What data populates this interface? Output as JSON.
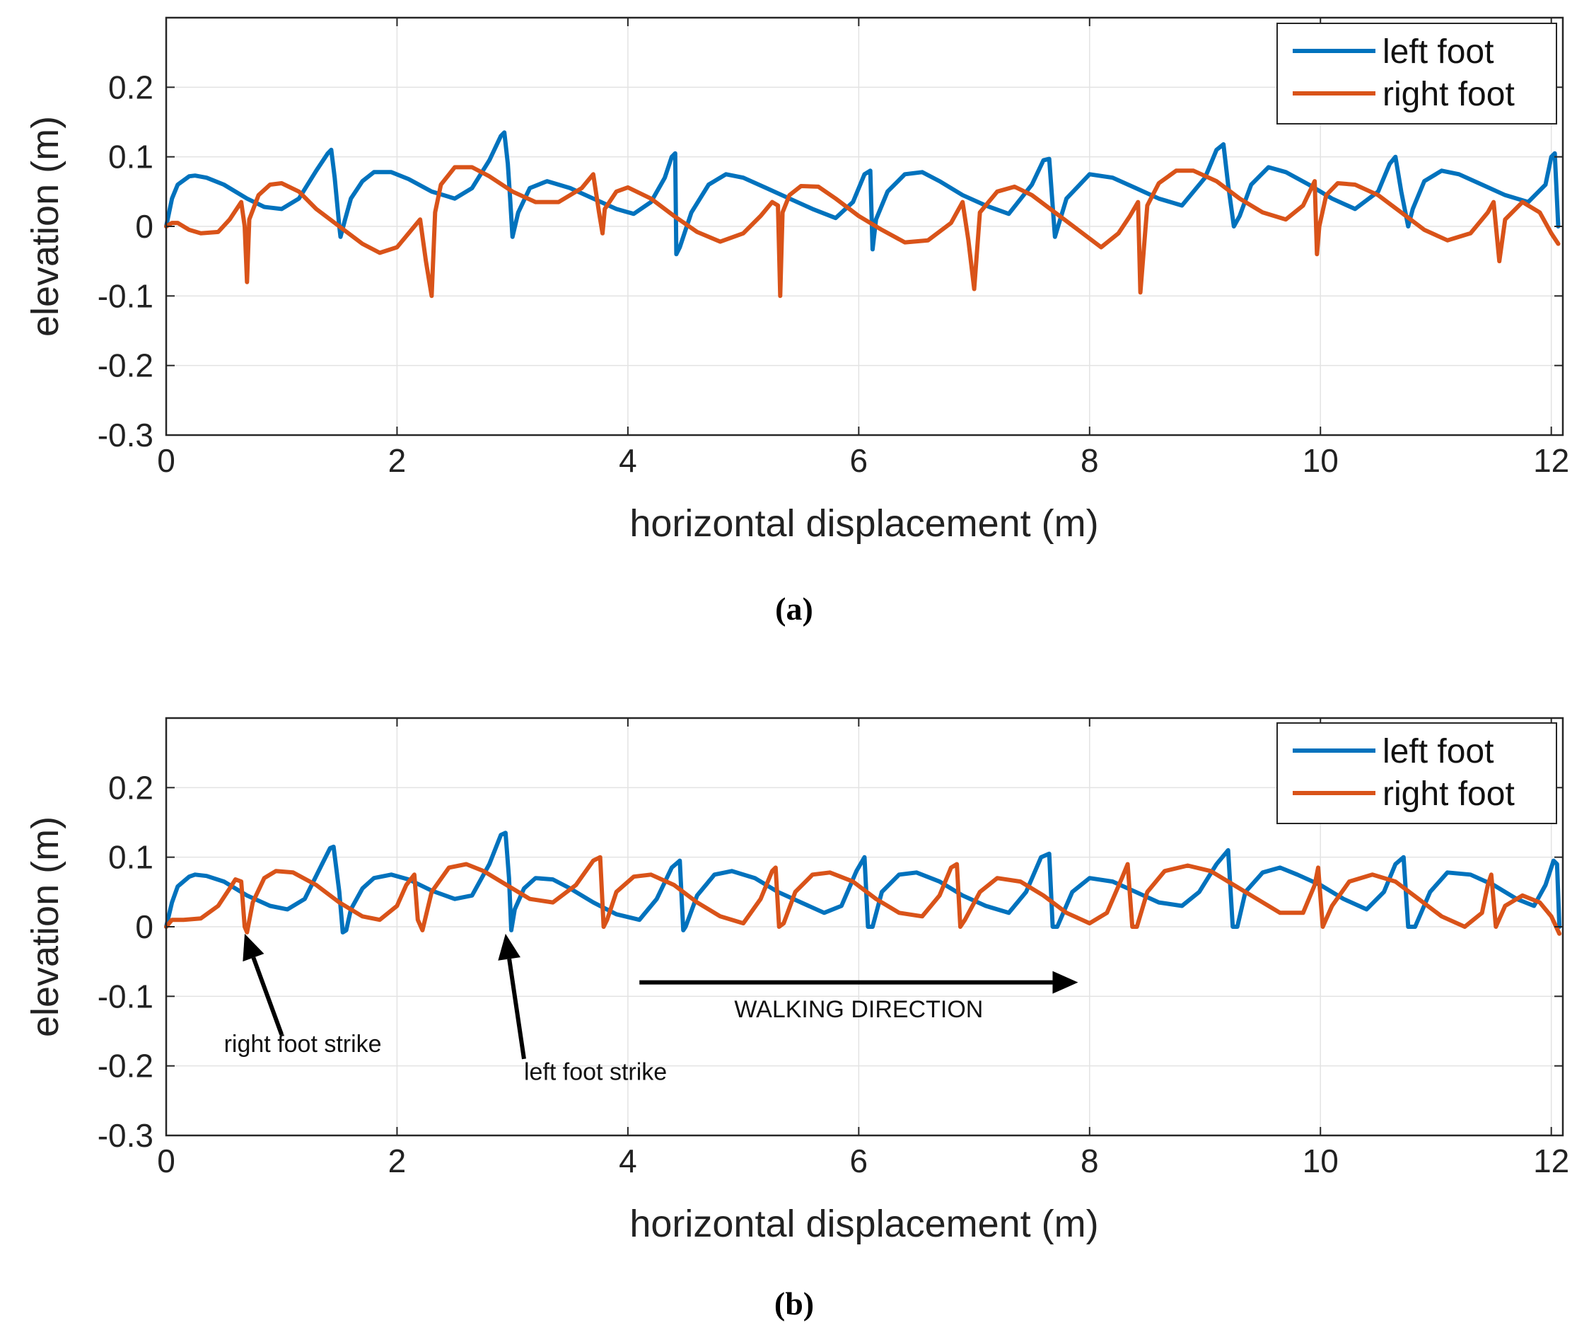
{
  "chart_data": [
    {
      "type": "line",
      "panel_label": "(a)",
      "title": "",
      "xlabel": "horizontal displacement (m)",
      "ylabel": "elevation (m)",
      "xlim": [
        0,
        12.1
      ],
      "ylim": [
        -0.3,
        0.3
      ],
      "xticks": [
        0,
        2,
        4,
        6,
        8,
        10,
        12
      ],
      "xtick_labels": [
        "0",
        "2",
        "4",
        "6",
        "8",
        "10",
        "12"
      ],
      "yticks": [
        -0.3,
        -0.2,
        -0.1,
        0,
        0.1,
        0.2
      ],
      "ytick_labels": [
        "-0.3",
        "-0.2",
        "-0.1",
        "0",
        "0.1",
        "0.2"
      ],
      "grid": true,
      "legend_position": "top-right",
      "series": [
        {
          "name": "left foot",
          "color": "#0072BD",
          "x": [
            0,
            0.05,
            0.1,
            0.2,
            0.25,
            0.35,
            0.5,
            0.7,
            0.85,
            1.0,
            1.15,
            1.3,
            1.4,
            1.43,
            1.46,
            1.5,
            1.51,
            1.55,
            1.6,
            1.7,
            1.8,
            1.95,
            2.1,
            2.3,
            2.5,
            2.65,
            2.8,
            2.9,
            2.93,
            2.96,
            2.98,
            3.0,
            3.05,
            3.15,
            3.3,
            3.5,
            3.7,
            3.9,
            4.05,
            4.2,
            4.32,
            4.38,
            4.41,
            4.42,
            4.45,
            4.55,
            4.7,
            4.85,
            5.0,
            5.2,
            5.4,
            5.6,
            5.8,
            5.95,
            6.05,
            6.1,
            6.12,
            6.15,
            6.25,
            6.4,
            6.55,
            6.7,
            6.9,
            7.1,
            7.3,
            7.5,
            7.6,
            7.65,
            7.7,
            7.8,
            8.0,
            8.2,
            8.4,
            8.6,
            8.8,
            9.0,
            9.1,
            9.16,
            9.2,
            9.25,
            9.3,
            9.4,
            9.55,
            9.7,
            9.9,
            10.1,
            10.3,
            10.5,
            10.6,
            10.65,
            10.7,
            10.76,
            10.8,
            10.9,
            11.05,
            11.2,
            11.4,
            11.6,
            11.8,
            11.95,
            12.0,
            12.03,
            12.06
          ],
          "values": [
            0,
            0.04,
            0.06,
            0.072,
            0.073,
            0.07,
            0.06,
            0.04,
            0.028,
            0.025,
            0.04,
            0.08,
            0.105,
            0.11,
            0.07,
            0.0,
            -0.015,
            0.01,
            0.04,
            0.065,
            0.078,
            0.078,
            0.068,
            0.05,
            0.04,
            0.055,
            0.095,
            0.13,
            0.135,
            0.09,
            0.04,
            -0.015,
            0.02,
            0.055,
            0.065,
            0.055,
            0.04,
            0.025,
            0.018,
            0.035,
            0.07,
            0.1,
            0.105,
            -0.04,
            -0.03,
            0.02,
            0.06,
            0.075,
            0.07,
            0.055,
            0.04,
            0.025,
            0.012,
            0.035,
            0.075,
            0.08,
            -0.033,
            0.01,
            0.05,
            0.075,
            0.078,
            0.065,
            0.045,
            0.03,
            0.018,
            0.06,
            0.095,
            0.097,
            -0.015,
            0.04,
            0.075,
            0.07,
            0.055,
            0.04,
            0.03,
            0.07,
            0.11,
            0.118,
            0.06,
            0.0,
            0.015,
            0.06,
            0.085,
            0.078,
            0.06,
            0.04,
            0.025,
            0.05,
            0.09,
            0.1,
            0.05,
            0.0,
            0.025,
            0.065,
            0.08,
            0.075,
            0.06,
            0.045,
            0.035,
            0.06,
            0.1,
            0.105,
            0.0
          ]
        },
        {
          "name": "right foot",
          "color": "#D95319",
          "x": [
            0,
            0.05,
            0.1,
            0.2,
            0.3,
            0.45,
            0.55,
            0.65,
            0.68,
            0.7,
            0.72,
            0.8,
            0.9,
            1.0,
            1.15,
            1.3,
            1.5,
            1.7,
            1.85,
            2.0,
            2.1,
            2.2,
            2.25,
            2.3,
            2.33,
            2.38,
            2.5,
            2.65,
            2.8,
            3.0,
            3.2,
            3.4,
            3.6,
            3.7,
            3.75,
            3.78,
            3.8,
            3.9,
            4.0,
            4.2,
            4.4,
            4.6,
            4.8,
            5.0,
            5.15,
            5.25,
            5.3,
            5.32,
            5.34,
            5.4,
            5.5,
            5.65,
            5.8,
            6.0,
            6.2,
            6.4,
            6.6,
            6.8,
            6.9,
            6.95,
            7.0,
            7.05,
            7.2,
            7.35,
            7.5,
            7.7,
            7.9,
            8.1,
            8.25,
            8.35,
            8.42,
            8.44,
            8.5,
            8.6,
            8.75,
            8.9,
            9.1,
            9.3,
            9.5,
            9.7,
            9.85,
            9.95,
            9.97,
            9.99,
            10.05,
            10.15,
            10.3,
            10.5,
            10.7,
            10.9,
            11.1,
            11.3,
            11.45,
            11.5,
            11.55,
            11.6,
            11.75,
            11.9,
            12.0,
            12.06
          ],
          "values": [
            0,
            0.005,
            0.005,
            -0.005,
            -0.01,
            -0.008,
            0.01,
            0.035,
            0.0,
            -0.08,
            0.01,
            0.045,
            0.06,
            0.062,
            0.05,
            0.025,
            0.0,
            -0.025,
            -0.038,
            -0.03,
            -0.01,
            0.01,
            -0.05,
            -0.1,
            0.02,
            0.06,
            0.085,
            0.085,
            0.072,
            0.05,
            0.035,
            0.035,
            0.055,
            0.075,
            0.02,
            -0.01,
            0.025,
            0.05,
            0.056,
            0.04,
            0.015,
            -0.008,
            -0.022,
            -0.01,
            0.015,
            0.035,
            0.03,
            -0.1,
            0.02,
            0.045,
            0.058,
            0.057,
            0.04,
            0.015,
            -0.005,
            -0.023,
            -0.02,
            0.005,
            0.035,
            -0.02,
            -0.09,
            0.02,
            0.05,
            0.057,
            0.045,
            0.02,
            -0.005,
            -0.03,
            -0.01,
            0.015,
            0.035,
            -0.095,
            0.03,
            0.062,
            0.08,
            0.08,
            0.065,
            0.04,
            0.02,
            0.01,
            0.03,
            0.065,
            -0.04,
            0.0,
            0.045,
            0.062,
            0.06,
            0.045,
            0.02,
            -0.005,
            -0.02,
            -0.01,
            0.02,
            0.035,
            -0.05,
            0.01,
            0.035,
            0.02,
            -0.01,
            -0.025
          ]
        }
      ]
    },
    {
      "type": "line",
      "panel_label": "(b)",
      "title": "",
      "xlabel": "horizontal displacement (m)",
      "ylabel": "elevation (m)",
      "xlim": [
        0,
        12.1
      ],
      "ylim": [
        -0.3,
        0.3
      ],
      "xticks": [
        0,
        2,
        4,
        6,
        8,
        10,
        12
      ],
      "xtick_labels": [
        "0",
        "2",
        "4",
        "6",
        "8",
        "10",
        "12"
      ],
      "yticks": [
        -0.3,
        -0.2,
        -0.1,
        0,
        0.1,
        0.2
      ],
      "ytick_labels": [
        "-0.3",
        "-0.2",
        "-0.1",
        "0",
        "0.1",
        "0.2"
      ],
      "grid": true,
      "legend_position": "top-right",
      "series": [
        {
          "name": "left foot",
          "color": "#0072BD",
          "x": [
            0,
            0.05,
            0.1,
            0.2,
            0.25,
            0.35,
            0.5,
            0.7,
            0.9,
            1.05,
            1.2,
            1.35,
            1.42,
            1.45,
            1.5,
            1.53,
            1.56,
            1.6,
            1.7,
            1.8,
            1.95,
            2.1,
            2.3,
            2.5,
            2.65,
            2.8,
            2.9,
            2.94,
            2.97,
            2.99,
            3.02,
            3.1,
            3.2,
            3.35,
            3.5,
            3.7,
            3.9,
            4.1,
            4.25,
            4.38,
            4.45,
            4.48,
            4.5,
            4.6,
            4.75,
            4.9,
            5.1,
            5.3,
            5.5,
            5.7,
            5.85,
            5.98,
            6.05,
            6.08,
            6.12,
            6.2,
            6.35,
            6.5,
            6.7,
            6.9,
            7.1,
            7.3,
            7.45,
            7.58,
            7.65,
            7.68,
            7.72,
            7.85,
            8.0,
            8.2,
            8.4,
            8.6,
            8.8,
            8.95,
            9.1,
            9.2,
            9.24,
            9.28,
            9.35,
            9.5,
            9.65,
            9.8,
            10.0,
            10.2,
            10.4,
            10.55,
            10.65,
            10.72,
            10.76,
            10.82,
            10.95,
            11.1,
            11.3,
            11.5,
            11.7,
            11.85,
            11.95,
            12.02,
            12.05,
            12.07
          ],
          "values": [
            0,
            0.035,
            0.058,
            0.072,
            0.075,
            0.073,
            0.065,
            0.045,
            0.03,
            0.025,
            0.04,
            0.09,
            0.113,
            0.115,
            0.05,
            -0.008,
            -0.005,
            0.025,
            0.055,
            0.07,
            0.075,
            0.068,
            0.052,
            0.04,
            0.045,
            0.09,
            0.132,
            0.135,
            0.07,
            -0.005,
            0.025,
            0.055,
            0.07,
            0.068,
            0.055,
            0.035,
            0.018,
            0.01,
            0.04,
            0.085,
            0.095,
            -0.005,
            0.0,
            0.045,
            0.075,
            0.08,
            0.07,
            0.05,
            0.035,
            0.02,
            0.03,
            0.08,
            0.1,
            0.0,
            0.0,
            0.05,
            0.075,
            0.078,
            0.065,
            0.045,
            0.03,
            0.02,
            0.05,
            0.1,
            0.105,
            0.0,
            0.0,
            0.05,
            0.07,
            0.065,
            0.05,
            0.035,
            0.03,
            0.05,
            0.09,
            0.11,
            0.0,
            0.0,
            0.05,
            0.078,
            0.085,
            0.075,
            0.06,
            0.04,
            0.025,
            0.05,
            0.09,
            0.1,
            0.0,
            0.0,
            0.05,
            0.078,
            0.075,
            0.06,
            0.04,
            0.03,
            0.06,
            0.095,
            0.09,
            0.0
          ]
        },
        {
          "name": "right foot",
          "color": "#D95319",
          "x": [
            0,
            0.05,
            0.15,
            0.3,
            0.45,
            0.55,
            0.6,
            0.65,
            0.68,
            0.7,
            0.75,
            0.85,
            0.95,
            1.1,
            1.3,
            1.5,
            1.7,
            1.85,
            2.0,
            2.08,
            2.15,
            2.18,
            2.22,
            2.3,
            2.45,
            2.6,
            2.75,
            2.95,
            3.15,
            3.35,
            3.55,
            3.7,
            3.76,
            3.79,
            3.82,
            3.9,
            4.05,
            4.2,
            4.4,
            4.6,
            4.8,
            5.0,
            5.15,
            5.25,
            5.28,
            5.31,
            5.35,
            5.45,
            5.6,
            5.75,
            5.95,
            6.15,
            6.35,
            6.55,
            6.7,
            6.8,
            6.85,
            6.88,
            6.92,
            7.05,
            7.2,
            7.4,
            7.6,
            7.8,
            8.0,
            8.15,
            8.28,
            8.33,
            8.37,
            8.41,
            8.5,
            8.65,
            8.85,
            9.05,
            9.25,
            9.45,
            9.65,
            9.85,
            9.95,
            9.98,
            10.02,
            10.1,
            10.25,
            10.45,
            10.65,
            10.85,
            11.05,
            11.25,
            11.4,
            11.45,
            11.48,
            11.52,
            11.6,
            11.75,
            11.9,
            12.0,
            12.07
          ],
          "values": [
            0,
            0.01,
            0.01,
            0.012,
            0.03,
            0.055,
            0.068,
            0.065,
            0.0,
            -0.008,
            0.035,
            0.07,
            0.08,
            0.078,
            0.06,
            0.035,
            0.015,
            0.01,
            0.03,
            0.06,
            0.075,
            0.01,
            -0.005,
            0.05,
            0.085,
            0.09,
            0.08,
            0.06,
            0.04,
            0.035,
            0.06,
            0.095,
            0.1,
            0.0,
            0.01,
            0.05,
            0.072,
            0.075,
            0.06,
            0.035,
            0.015,
            0.005,
            0.04,
            0.08,
            0.085,
            0.0,
            0.005,
            0.05,
            0.075,
            0.078,
            0.065,
            0.04,
            0.02,
            0.015,
            0.045,
            0.085,
            0.09,
            0.0,
            0.01,
            0.05,
            0.07,
            0.065,
            0.045,
            0.02,
            0.005,
            0.02,
            0.07,
            0.09,
            0.0,
            0.0,
            0.05,
            0.08,
            0.088,
            0.08,
            0.06,
            0.04,
            0.02,
            0.02,
            0.06,
            0.085,
            0.0,
            0.03,
            0.065,
            0.075,
            0.065,
            0.04,
            0.015,
            0.0,
            0.02,
            0.06,
            0.075,
            0.0,
            0.03,
            0.045,
            0.035,
            0.015,
            -0.01
          ]
        }
      ],
      "annotations": [
        {
          "text": "right foot strike",
          "x": 0.5,
          "y": -0.18,
          "arrow_tip": [
            0.68,
            -0.01
          ],
          "arrow_tail": [
            1.0,
            -0.155
          ]
        },
        {
          "text": "left foot strike",
          "x": 3.1,
          "y": -0.22,
          "arrow_tip": [
            2.94,
            -0.01
          ],
          "arrow_tail": [
            3.1,
            -0.19
          ]
        },
        {
          "text": "WALKING DIRECTION",
          "x": 6.0,
          "y": -0.13,
          "arrow_tip": [
            7.9,
            -0.08
          ],
          "arrow_tail": [
            4.1,
            -0.08
          ]
        }
      ]
    }
  ]
}
